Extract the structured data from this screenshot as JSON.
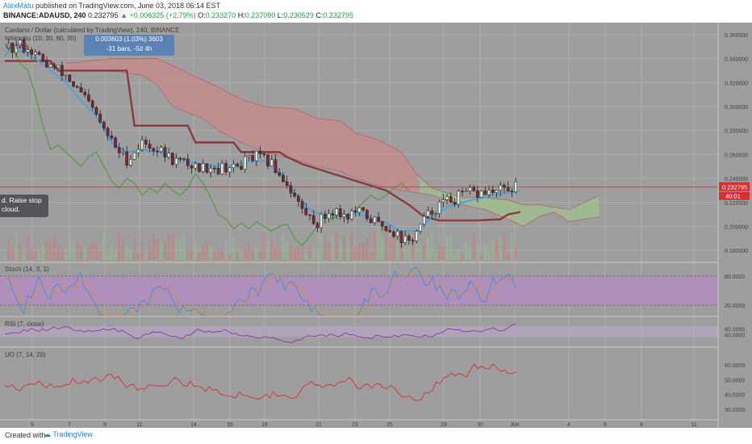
{
  "header": {
    "author": "AlexMatu",
    "published": "published on TradingView.com, June 03, 2018 06:14 EST",
    "symbol": "BINANCE:ADAUSD, 240",
    "last": "0.232795",
    "change": "+0.006325 (+2.79%)",
    "o_label": "O:",
    "o": "0.233270",
    "h_label": "H:",
    "h": "0.237090",
    "l_label": "L:",
    "l": "0.230529",
    "c_label": "C:",
    "c": "0.232795"
  },
  "legend": {
    "main": "Cardano / Dollar (calculated by TradingView), 240, BINANCE",
    "ichimoku": "Ichimoku (10, 30, 60, 30)",
    "vol": "Vol (20)",
    "stoch": "Stoch (14, 3, 1)",
    "rsi": "RSI (7, close)",
    "uo": "UO (7, 14, 28)"
  },
  "tooltip": {
    "line1": "0.003603 (1.03%) 3603",
    "line2": "-31 bars, -5d 4h"
  },
  "note": {
    "line1": "d. Raise stop",
    "line2": "cloud."
  },
  "footer": {
    "created": "Created with",
    "brand": "TradingView"
  },
  "colors": {
    "background": "#9e9e9e",
    "grid": "#adadad",
    "up_candle": "#d8ead8",
    "down_candle": "#7a2a2a",
    "tenkan": "#4aa3df",
    "kijun": "#8a3a3a",
    "chikou": "#58a048",
    "cloud_red": "#c98a8a",
    "cloud_green": "#9ec08e",
    "stoch_band": "#b58ac8",
    "rsi_band": "#bba6c8",
    "uo_line": "#d83030",
    "price_label": "#d83030"
  },
  "chart_data": [
    {
      "type": "candlestick",
      "title": "Cardano / Dollar (calculated by TradingView), 240, BINANCE",
      "ylim": [
        0.17,
        0.37
      ],
      "y_ticks": [
        "0.360000",
        "0.340000",
        "0.320000",
        "0.300000",
        "0.280000",
        "0.260000",
        "0.240000",
        "0.220000",
        "0.200000",
        "0.180000"
      ],
      "x_ticks": [
        "5",
        "7",
        "9",
        "11",
        "14",
        "16",
        "18",
        "21",
        "23",
        "25",
        "28",
        "30",
        "Jun",
        "4",
        "6",
        "8",
        "11"
      ],
      "current_price": "0.232795",
      "countdown": "40:01",
      "close_path": [
        [
          0.0,
          0.349
        ],
        [
          0.5,
          0.347
        ],
        [
          1.0,
          0.352
        ],
        [
          1.5,
          0.348
        ],
        [
          2.0,
          0.344
        ],
        [
          2.5,
          0.337
        ],
        [
          3.0,
          0.334
        ],
        [
          3.5,
          0.33
        ],
        [
          4.0,
          0.326
        ],
        [
          4.5,
          0.318
        ],
        [
          5.0,
          0.31
        ],
        [
          5.5,
          0.302
        ],
        [
          6.0,
          0.292
        ],
        [
          6.5,
          0.28
        ],
        [
          7.0,
          0.271
        ],
        [
          7.5,
          0.262
        ],
        [
          8.0,
          0.256
        ],
        [
          8.5,
          0.262
        ],
        [
          9.0,
          0.27
        ],
        [
          9.5,
          0.268
        ],
        [
          10.0,
          0.264
        ],
        [
          10.5,
          0.26
        ],
        [
          11.0,
          0.256
        ],
        [
          11.5,
          0.254
        ],
        [
          12.0,
          0.252
        ],
        [
          12.5,
          0.25
        ],
        [
          13.0,
          0.249
        ],
        [
          13.5,
          0.251
        ],
        [
          14.0,
          0.248
        ],
        [
          14.5,
          0.25
        ],
        [
          15.0,
          0.248
        ],
        [
          15.5,
          0.252
        ],
        [
          16.0,
          0.256
        ],
        [
          16.5,
          0.258
        ],
        [
          17.0,
          0.255
        ],
        [
          17.5,
          0.252
        ],
        [
          18.0,
          0.244
        ],
        [
          18.5,
          0.236
        ],
        [
          19.0,
          0.225
        ],
        [
          19.5,
          0.214
        ],
        [
          20.0,
          0.207
        ],
        [
          20.5,
          0.203
        ],
        [
          21.0,
          0.209
        ],
        [
          21.5,
          0.214
        ],
        [
          22.0,
          0.211
        ],
        [
          22.5,
          0.209
        ],
        [
          23.0,
          0.212
        ],
        [
          23.5,
          0.21
        ],
        [
          24.0,
          0.206
        ],
        [
          24.5,
          0.202
        ],
        [
          25.0,
          0.2
        ],
        [
          25.5,
          0.196
        ],
        [
          26.0,
          0.19
        ],
        [
          26.5,
          0.187
        ],
        [
          27.0,
          0.195
        ],
        [
          27.5,
          0.205
        ],
        [
          28.0,
          0.213
        ],
        [
          28.5,
          0.218
        ],
        [
          29.0,
          0.221
        ],
        [
          29.5,
          0.223
        ],
        [
          30.0,
          0.226
        ],
        [
          30.5,
          0.228
        ],
        [
          31.0,
          0.227
        ],
        [
          31.5,
          0.229
        ],
        [
          32.0,
          0.228
        ],
        [
          32.5,
          0.23
        ],
        [
          33.0,
          0.231
        ],
        [
          33.5,
          0.233
        ]
      ],
      "tenkan_path": [
        [
          0.0,
          0.346
        ],
        [
          1.0,
          0.346
        ],
        [
          2.0,
          0.34
        ],
        [
          3.0,
          0.33
        ],
        [
          4.0,
          0.32
        ],
        [
          5.0,
          0.305
        ],
        [
          6.0,
          0.292
        ],
        [
          7.0,
          0.27
        ],
        [
          8.0,
          0.262
        ],
        [
          9.0,
          0.264
        ],
        [
          10.0,
          0.262
        ],
        [
          11.0,
          0.258
        ],
        [
          12.0,
          0.254
        ],
        [
          13.0,
          0.252
        ],
        [
          14.0,
          0.25
        ],
        [
          15.0,
          0.251
        ],
        [
          16.0,
          0.254
        ],
        [
          17.0,
          0.255
        ],
        [
          18.0,
          0.245
        ],
        [
          19.0,
          0.228
        ],
        [
          20.0,
          0.214
        ],
        [
          21.0,
          0.208
        ],
        [
          22.0,
          0.21
        ],
        [
          23.0,
          0.211
        ],
        [
          24.0,
          0.207
        ],
        [
          25.0,
          0.203
        ],
        [
          26.0,
          0.196
        ],
        [
          27.0,
          0.196
        ],
        [
          28.0,
          0.208
        ],
        [
          29.0,
          0.216
        ],
        [
          30.0,
          0.22
        ],
        [
          31.0,
          0.223
        ],
        [
          32.0,
          0.226
        ],
        [
          33.0,
          0.228
        ],
        [
          33.8,
          0.23
        ]
      ],
      "kijun_path": [
        [
          0.0,
          0.338
        ],
        [
          3.0,
          0.338
        ],
        [
          3.5,
          0.33
        ],
        [
          8.0,
          0.33
        ],
        [
          8.5,
          0.284
        ],
        [
          12.0,
          0.284
        ],
        [
          12.5,
          0.27
        ],
        [
          15.0,
          0.27
        ],
        [
          15.5,
          0.262
        ],
        [
          18.0,
          0.262
        ],
        [
          18.5,
          0.258
        ],
        [
          19.5,
          0.252
        ],
        [
          21.0,
          0.246
        ],
        [
          23.0,
          0.238
        ],
        [
          25.0,
          0.23
        ],
        [
          26.5,
          0.218
        ],
        [
          27.5,
          0.208
        ],
        [
          28.5,
          0.205
        ],
        [
          31.0,
          0.205
        ],
        [
          32.5,
          0.206
        ],
        [
          33.0,
          0.21
        ],
        [
          33.8,
          0.212
        ]
      ],
      "chikou_path": [
        [
          0.0,
          0.342
        ],
        [
          0.5,
          0.35
        ],
        [
          1.0,
          0.336
        ],
        [
          1.5,
          0.33
        ],
        [
          2.0,
          0.31
        ],
        [
          2.5,
          0.284
        ],
        [
          3.0,
          0.264
        ],
        [
          3.5,
          0.268
        ],
        [
          4.0,
          0.262
        ],
        [
          4.5,
          0.256
        ],
        [
          5.0,
          0.25
        ],
        [
          5.5,
          0.258
        ],
        [
          6.0,
          0.262
        ],
        [
          6.5,
          0.25
        ],
        [
          7.0,
          0.238
        ],
        [
          7.5,
          0.232
        ],
        [
          8.0,
          0.24
        ],
        [
          8.5,
          0.236
        ],
        [
          9.0,
          0.226
        ],
        [
          9.5,
          0.232
        ],
        [
          10.0,
          0.228
        ],
        [
          10.5,
          0.236
        ],
        [
          11.0,
          0.23
        ],
        [
          11.5,
          0.226
        ],
        [
          12.0,
          0.232
        ],
        [
          12.5,
          0.244
        ],
        [
          13.0,
          0.236
        ],
        [
          13.5,
          0.224
        ],
        [
          14.0,
          0.21
        ],
        [
          14.5,
          0.206
        ],
        [
          15.0,
          0.198
        ],
        [
          15.5,
          0.203
        ],
        [
          16.0,
          0.198
        ],
        [
          16.5,
          0.204
        ],
        [
          17.0,
          0.2
        ],
        [
          17.5,
          0.196
        ],
        [
          18.0,
          0.2
        ],
        [
          18.5,
          0.202
        ],
        [
          19.0,
          0.19
        ],
        [
          19.5,
          0.184
        ],
        [
          20.0,
          0.192
        ],
        [
          20.5,
          0.2
        ],
        [
          21.0,
          0.21
        ],
        [
          21.5,
          0.206
        ],
        [
          22.0,
          0.212
        ],
        [
          22.5,
          0.208
        ],
        [
          23.0,
          0.214
        ],
        [
          23.5,
          0.22
        ],
        [
          24.0,
          0.226
        ],
        [
          24.5,
          0.222
        ],
        [
          25.0,
          0.226
        ],
        [
          25.5,
          0.232
        ],
        [
          26.0,
          0.236
        ],
        [
          26.5,
          0.23
        ]
      ],
      "cloud_top": [
        [
          4.0,
          0.336
        ],
        [
          7.0,
          0.34
        ],
        [
          9.0,
          0.34
        ],
        [
          10.0,
          0.34
        ],
        [
          11.0,
          0.334
        ],
        [
          13.0,
          0.322
        ],
        [
          14.0,
          0.316
        ],
        [
          15.5,
          0.306
        ],
        [
          17.0,
          0.3
        ],
        [
          19.0,
          0.298
        ],
        [
          20.5,
          0.29
        ],
        [
          22.0,
          0.288
        ],
        [
          23.0,
          0.278
        ],
        [
          24.5,
          0.272
        ],
        [
          26.0,
          0.262
        ],
        [
          27.0,
          0.244
        ],
        [
          28.0,
          0.232
        ],
        [
          30.0,
          0.224
        ],
        [
          31.5,
          0.224
        ],
        [
          33.0,
          0.222
        ],
        [
          34.0,
          0.218
        ],
        [
          35.0,
          0.218
        ],
        [
          36.0,
          0.216
        ],
        [
          37.0,
          0.214
        ],
        [
          38.0,
          0.22
        ],
        [
          39.0,
          0.226
        ]
      ],
      "cloud_bottom": [
        [
          4.0,
          0.33
        ],
        [
          7.0,
          0.33
        ],
        [
          9.0,
          0.326
        ],
        [
          10.0,
          0.318
        ],
        [
          11.0,
          0.3
        ],
        [
          13.0,
          0.29
        ],
        [
          14.0,
          0.28
        ],
        [
          15.5,
          0.27
        ],
        [
          17.0,
          0.262
        ],
        [
          19.0,
          0.256
        ],
        [
          20.5,
          0.25
        ],
        [
          22.0,
          0.246
        ],
        [
          23.0,
          0.24
        ],
        [
          24.5,
          0.234
        ],
        [
          26.0,
          0.23
        ],
        [
          27.0,
          0.228
        ],
        [
          28.0,
          0.226
        ],
        [
          30.0,
          0.218
        ],
        [
          31.5,
          0.214
        ],
        [
          33.0,
          0.206
        ],
        [
          34.0,
          0.2
        ],
        [
          35.0,
          0.208
        ],
        [
          36.0,
          0.212
        ],
        [
          37.0,
          0.204
        ],
        [
          38.0,
          0.206
        ],
        [
          39.0,
          0.208
        ]
      ],
      "cloud_twist_index": 27.2
    },
    {
      "type": "bar",
      "title": "Vol (20)",
      "description_series": "volume"
    },
    {
      "type": "line",
      "title": "Stoch (14, 3, 1)",
      "ylim": [
        0,
        100
      ],
      "y_ticks": [
        "80.0000",
        "20.0000"
      ],
      "band": [
        20,
        80
      ]
    },
    {
      "type": "line",
      "title": "RSI (7, close)",
      "ylim": [
        0,
        100
      ],
      "y_ticks": [
        "60.0000",
        "40.0000"
      ],
      "band": [
        30,
        70
      ]
    },
    {
      "type": "line",
      "title": "UO (7, 14, 28)",
      "ylim": [
        25,
        70
      ],
      "y_ticks": [
        "60.0000",
        "50.0000",
        "40.0000",
        "30.0000"
      ]
    }
  ]
}
